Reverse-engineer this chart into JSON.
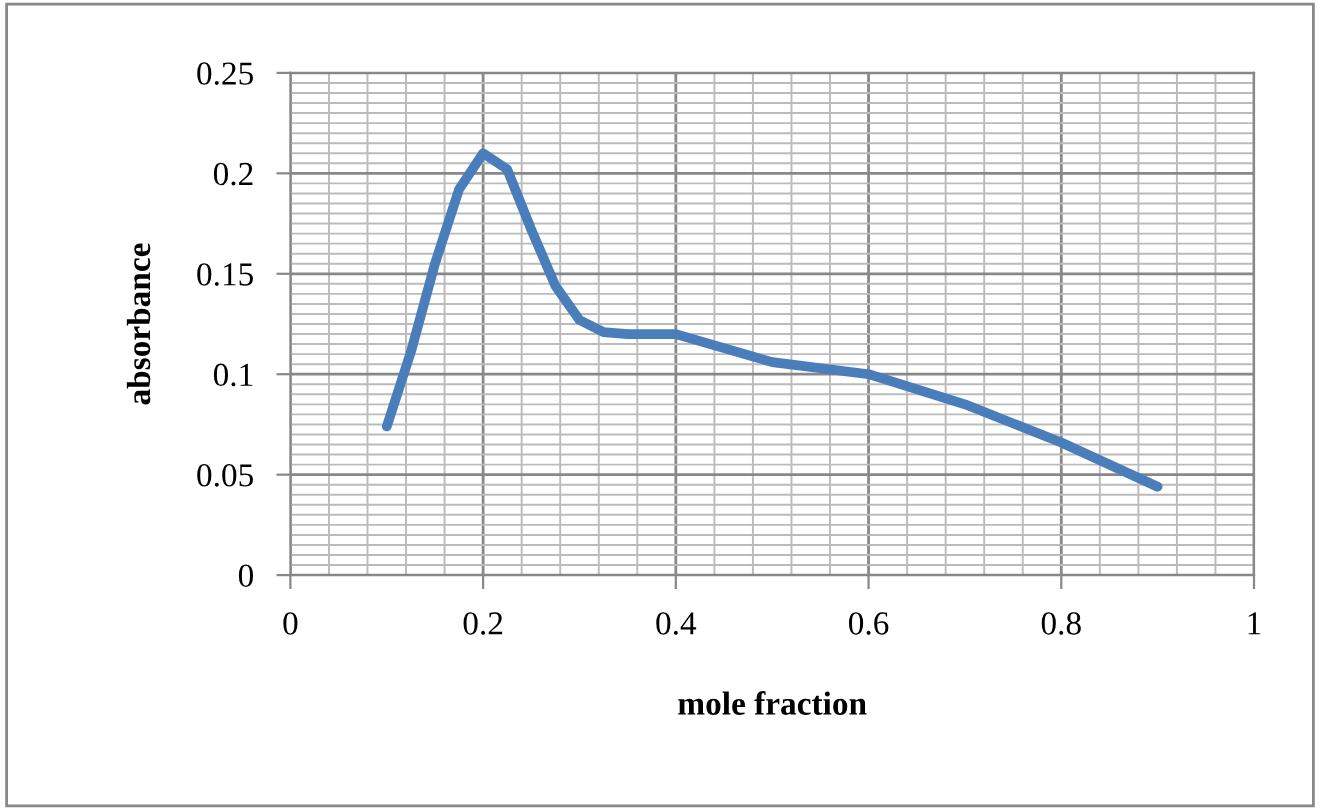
{
  "chart_data": {
    "type": "line",
    "xlabel": "mole fraction",
    "ylabel": "absorbance",
    "x": [
      0.1,
      0.125,
      0.15,
      0.175,
      0.2,
      0.225,
      0.25,
      0.275,
      0.3,
      0.325,
      0.35,
      0.4,
      0.45,
      0.5,
      0.6,
      0.7,
      0.8,
      0.9
    ],
    "series": [
      {
        "color": "#4a7ebb",
        "values": [
          0.074,
          0.111,
          0.155,
          0.192,
          0.21,
          0.202,
          0.172,
          0.144,
          0.127,
          0.121,
          0.12,
          0.12,
          0.113,
          0.106,
          0.1,
          0.085,
          0.066,
          0.044
        ]
      }
    ],
    "xlim": [
      0,
      1
    ],
    "ylim": [
      0,
      0.25
    ],
    "xticks": [
      0,
      0.2,
      0.4,
      0.6,
      0.8,
      1
    ],
    "yticks": [
      0,
      0.05,
      0.1,
      0.15,
      0.2,
      0.25
    ],
    "grid": true,
    "legend": false,
    "marker": "none",
    "line_style": "solid"
  }
}
